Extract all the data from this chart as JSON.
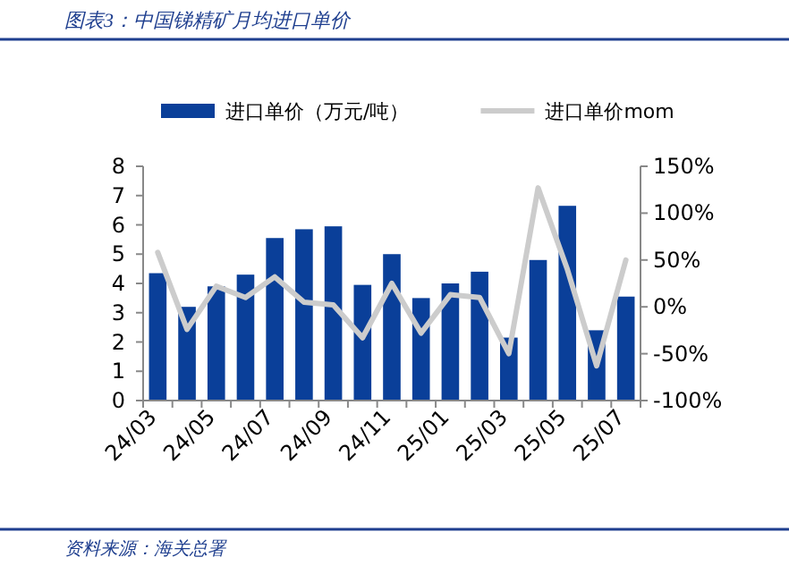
{
  "chart_data": {
    "type": "bar",
    "title": "图表3：中国锑精矿月均进口单价",
    "annotations": [
      "资料来源：海关总署"
    ],
    "categories": [
      "24/03",
      null,
      "24/05",
      null,
      "24/07",
      null,
      "24/09",
      null,
      "24/11",
      null,
      "25/01",
      null,
      "25/03",
      null,
      "25/05",
      null,
      "25/07"
    ],
    "series": [
      {
        "name": "进口单价（万元/吨）",
        "color": "#0a3f99",
        "values": [
          4.35,
          3.2,
          3.9,
          4.3,
          5.55,
          5.85,
          5.95,
          3.95,
          5.0,
          3.5,
          4.0,
          4.4,
          2.15,
          4.8,
          6.65,
          2.4,
          3.55
        ]
      },
      {
        "name": "进口单价mom",
        "type": "line",
        "axis": "y2",
        "color": "#cccccc",
        "values": [
          58,
          -24,
          22,
          10,
          32,
          5,
          2,
          -33,
          25,
          -28,
          13,
          10,
          -50,
          127,
          40,
          -63,
          50
        ]
      }
    ],
    "ylim": [
      0,
      8
    ],
    "yticks": [
      0,
      1,
      2,
      3,
      4,
      5,
      6,
      7,
      8
    ],
    "y2lim": [
      -100,
      150
    ],
    "y2ticks": [
      {
        "value": -100,
        "label": "-100%"
      },
      {
        "value": -50,
        "label": "-50%"
      },
      {
        "value": 0,
        "label": "0%"
      },
      {
        "value": 50,
        "label": "50%"
      },
      {
        "value": 100,
        "label": "100%"
      },
      {
        "value": 150,
        "label": "150%"
      }
    ],
    "legend": "top",
    "grid": false
  }
}
